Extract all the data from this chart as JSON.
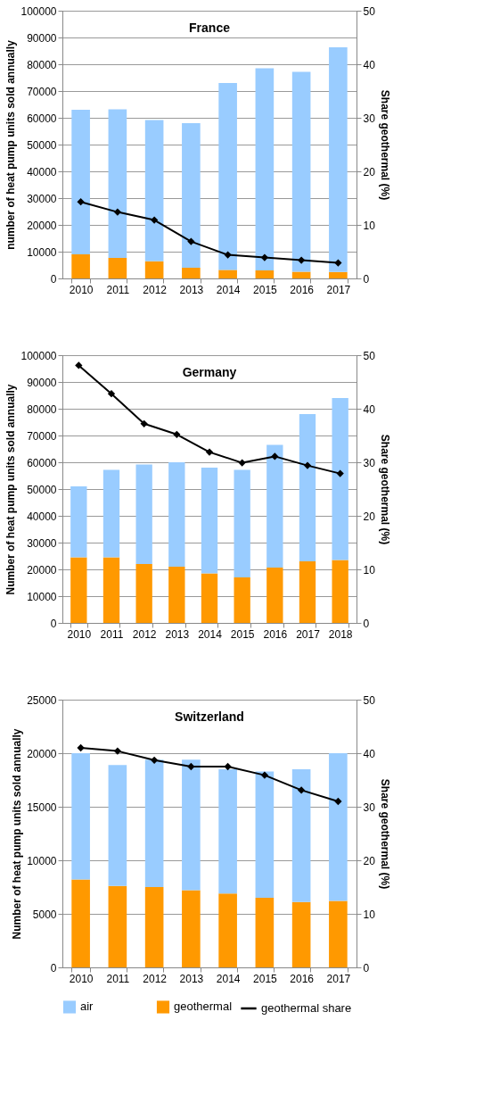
{
  "chart_data": [
    {
      "type": "bar",
      "title": "France",
      "ylabel": "number of heat pump units sold annually",
      "y2label": "Share geothermal (%)",
      "stacked": true,
      "grid": "y",
      "legend": false,
      "marker": "diamond",
      "line_style": "solid",
      "categories": [
        "2010",
        "2011",
        "2012",
        "2013",
        "2014",
        "2015",
        "2016",
        "2017"
      ],
      "ylim": [
        0,
        100000
      ],
      "yticks": [
        0,
        10000,
        20000,
        30000,
        40000,
        50000,
        60000,
        70000,
        80000,
        90000,
        100000
      ],
      "y2lim": [
        0,
        50
      ],
      "y2ticks": [
        0,
        10,
        20,
        30,
        40,
        50
      ],
      "series": [
        {
          "color": "#ff9900",
          "values": [
            9000,
            7700,
            6400,
            4000,
            3200,
            3000,
            2500,
            2400
          ]
        },
        {
          "color": "#99ccff",
          "values": [
            54000,
            55500,
            52800,
            54000,
            69800,
            75500,
            74700,
            83900
          ]
        },
        {
          "type": "line",
          "axis": "y2",
          "color": "#000000",
          "values": [
            14.3,
            12.4,
            10.9,
            6.9,
            4.4,
            3.9,
            3.4,
            2.9
          ]
        }
      ]
    },
    {
      "type": "bar",
      "title": "Germany",
      "ylabel": "Number of heat pump units sold annually",
      "y2label": "Share geothermal (%)",
      "stacked": true,
      "grid": "y",
      "legend": false,
      "marker": "diamond",
      "line_style": "solid",
      "categories": [
        "2010",
        "2011",
        "2012",
        "2013",
        "2014",
        "2015",
        "2016",
        "2017",
        "2018"
      ],
      "ylim": [
        0,
        100000
      ],
      "yticks": [
        0,
        10000,
        20000,
        30000,
        40000,
        50000,
        60000,
        70000,
        80000,
        90000,
        100000
      ],
      "y2lim": [
        0,
        50
      ],
      "y2ticks": [
        0,
        10,
        20,
        30,
        40,
        50
      ],
      "series": [
        {
          "color": "#ff9900",
          "values": [
            24500,
            24500,
            22000,
            21000,
            18500,
            17000,
            20700,
            23000,
            23500
          ]
        },
        {
          "color": "#99ccff",
          "values": [
            26500,
            32700,
            37200,
            39000,
            39500,
            40200,
            45800,
            55000,
            60500
          ]
        },
        {
          "type": "line",
          "axis": "y2",
          "color": "#000000",
          "values": [
            48.1,
            42.8,
            37.2,
            35.2,
            31.9,
            29.9,
            31.1,
            29.4,
            27.9
          ]
        }
      ]
    },
    {
      "type": "bar",
      "title": "Switzerland",
      "ylabel": "Number of heat pump units sold annually",
      "y2label": "Share geothermal (%)",
      "stacked": true,
      "grid": "y",
      "legend": "bottom",
      "marker": "diamond",
      "line_style": "solid",
      "categories": [
        "2010",
        "2011",
        "2012",
        "2013",
        "2014",
        "2015",
        "2016",
        "2017"
      ],
      "ylim": [
        0,
        25000
      ],
      "yticks": [
        0,
        5000,
        10000,
        15000,
        20000,
        25000
      ],
      "y2lim": [
        0,
        50
      ],
      "y2ticks": [
        0,
        10,
        20,
        30,
        40,
        50
      ],
      "series": [
        {
          "name": "geothermal",
          "color": "#ff9900",
          "values": [
            8200,
            7600,
            7500,
            7200,
            6900,
            6500,
            6100,
            6200
          ]
        },
        {
          "name": "air",
          "color": "#99ccff",
          "values": [
            11800,
            11300,
            11900,
            12200,
            11600,
            11800,
            12400,
            13800
          ]
        },
        {
          "name": "geothermal share",
          "type": "line",
          "axis": "y2",
          "color": "#000000",
          "values": [
            41.0,
            40.4,
            38.7,
            37.5,
            37.5,
            35.9,
            33.1,
            31.0
          ]
        }
      ]
    }
  ]
}
